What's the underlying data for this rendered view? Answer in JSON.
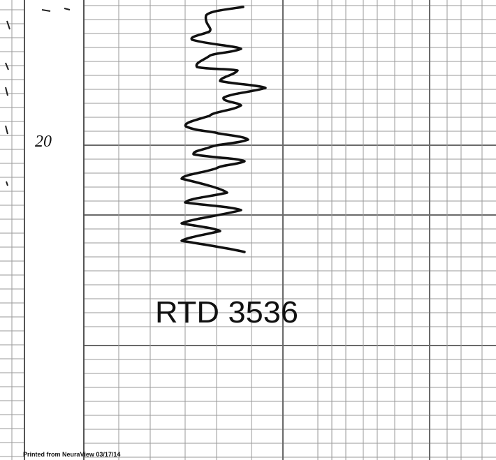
{
  "depth_label": "20",
  "annotation": "RTD 3536",
  "footer": "Printed from NeuraView 03/17/14"
}
